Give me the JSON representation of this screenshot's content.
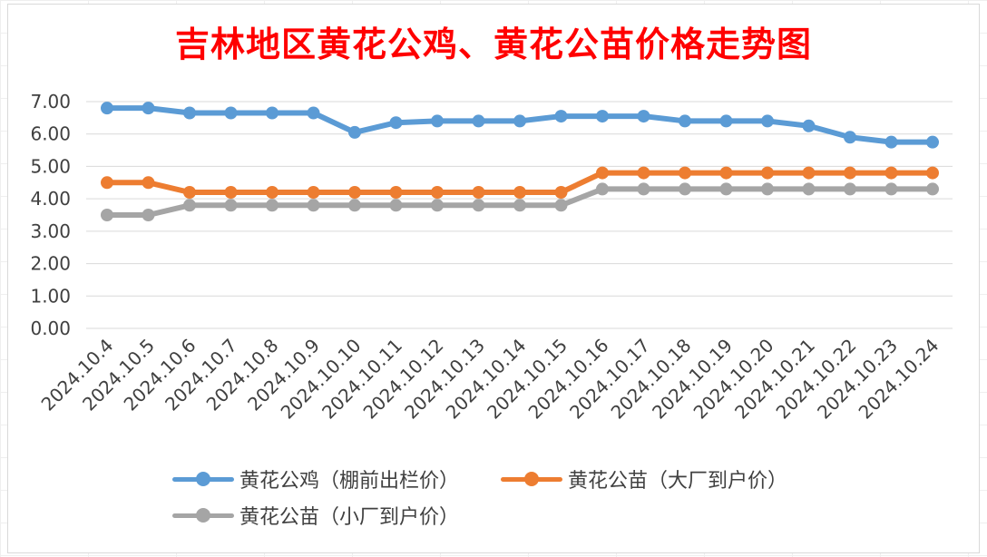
{
  "chart_data": {
    "type": "line",
    "title": "吉林地区黄花公鸡、黄花公苗价格走势图",
    "xlabel": "",
    "ylabel": "",
    "ylim": [
      0,
      7
    ],
    "yticks": [
      "0.00",
      "1.00",
      "2.00",
      "3.00",
      "4.00",
      "5.00",
      "6.00",
      "7.00"
    ],
    "grid": true,
    "legend_position": "bottom",
    "categories": [
      "2024.10.4",
      "2024.10.5",
      "2024.10.6",
      "2024.10.7",
      "2024.10.8",
      "2024.10.9",
      "2024.10.10",
      "2024.10.11",
      "2024.10.12",
      "2024.10.13",
      "2024.10.14",
      "2024.10.15",
      "2024.10.16",
      "2024.10.17",
      "2024.10.18",
      "2024.10.19",
      "2024.10.20",
      "2024.10.21",
      "2024.10.22",
      "2024.10.23",
      "2024.10.24"
    ],
    "series": [
      {
        "name": "黄花公鸡（棚前出栏价）",
        "color": "#5b9bd5",
        "values": [
          6.8,
          6.8,
          6.65,
          6.65,
          6.65,
          6.65,
          6.05,
          6.35,
          6.4,
          6.4,
          6.4,
          6.55,
          6.55,
          6.55,
          6.4,
          6.4,
          6.4,
          6.25,
          5.9,
          5.75,
          5.75
        ]
      },
      {
        "name": "黄花公苗（大厂到户价）",
        "color": "#ed7d31",
        "values": [
          4.5,
          4.5,
          4.2,
          4.2,
          4.2,
          4.2,
          4.2,
          4.2,
          4.2,
          4.2,
          4.2,
          4.2,
          4.8,
          4.8,
          4.8,
          4.8,
          4.8,
          4.8,
          4.8,
          4.8,
          4.8
        ]
      },
      {
        "name": "黄花公苗（小厂到户价）",
        "color": "#a5a5a5",
        "values": [
          3.5,
          3.5,
          3.8,
          3.8,
          3.8,
          3.8,
          3.8,
          3.8,
          3.8,
          3.8,
          3.8,
          3.8,
          4.3,
          4.3,
          4.3,
          4.3,
          4.3,
          4.3,
          4.3,
          4.3,
          4.3
        ]
      }
    ]
  }
}
